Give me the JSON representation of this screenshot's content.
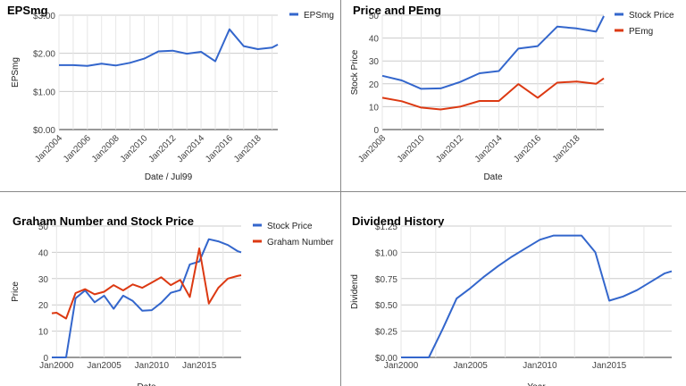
{
  "chart_data": [
    {
      "type": "line",
      "title": "EPSmg",
      "xlabel": "Date / Jul99",
      "ylabel": "EPSmg",
      "x_tick_labels": [
        "Jan2004",
        "Jan2006",
        "Jan2008",
        "Jan2010",
        "Jan2012",
        "Jan2014",
        "Jan2016",
        "Jan2018"
      ],
      "y_tick_labels": [
        "$0.00",
        "$1.00",
        "$2.00",
        "$3.00"
      ],
      "xlim": [
        2004.0,
        2019.4
      ],
      "ylim": [
        0,
        3
      ],
      "legend_position": "top-right",
      "grid": true,
      "series": [
        {
          "name": "EPSmg",
          "color": "#3366cc",
          "x": [
            2004,
            2005,
            2006,
            2007,
            2008,
            2009,
            2010,
            2011,
            2012,
            2013,
            2014,
            2015,
            2016,
            2017,
            2018,
            2019,
            2019.4
          ],
          "y": [
            1.69,
            1.69,
            1.67,
            1.73,
            1.68,
            1.75,
            1.86,
            2.05,
            2.07,
            1.99,
            2.04,
            1.79,
            2.63,
            2.19,
            2.11,
            2.15,
            2.23
          ]
        }
      ]
    },
    {
      "type": "line",
      "title": "Price and PEmg",
      "xlabel": "Date",
      "ylabel": "Stock Price",
      "x_tick_labels": [
        "Jan2008",
        "Jan2010",
        "Jan2012",
        "Jan2014",
        "Jan2016",
        "Jan2018"
      ],
      "y_tick_labels": [
        "0",
        "10",
        "20",
        "30",
        "40",
        "50"
      ],
      "xlim": [
        2008.0,
        2019.4
      ],
      "ylim": [
        0,
        50
      ],
      "legend_position": "top-right",
      "grid": true,
      "series": [
        {
          "name": "Stock Price",
          "color": "#3366cc",
          "x": [
            2008,
            2009,
            2010,
            2011,
            2012,
            2013,
            2014,
            2015,
            2016,
            2017,
            2018,
            2019,
            2019.4
          ],
          "y": [
            23.5,
            21.5,
            17.8,
            18.0,
            20.8,
            24.6,
            25.6,
            35.4,
            36.5,
            45.0,
            44.2,
            42.8,
            49.6
          ]
        },
        {
          "name": "PEmg",
          "color": "#dc3912",
          "x": [
            2008,
            2009,
            2010,
            2011,
            2012,
            2013,
            2014,
            2015,
            2016,
            2017,
            2018,
            2019,
            2019.4
          ],
          "y": [
            13.9,
            12.4,
            9.6,
            8.8,
            10.0,
            12.5,
            12.5,
            19.9,
            13.9,
            20.5,
            21.0,
            20.0,
            22.4
          ]
        }
      ]
    },
    {
      "type": "line",
      "title": "Graham Number and Stock Price",
      "xlabel": "Date",
      "ylabel": "Price",
      "x_tick_labels": [
        "Jan2000",
        "Jan2005",
        "Jan2010",
        "Jan2015"
      ],
      "y_tick_labels": [
        "0",
        "10",
        "20",
        "30",
        "40",
        "50"
      ],
      "xlim": [
        1999.5,
        2019.4
      ],
      "ylim": [
        0,
        50
      ],
      "legend_position": "top-right",
      "grid": true,
      "series": [
        {
          "name": "Stock Price",
          "color": "#3366cc",
          "x": [
            1999.5,
            2000,
            2001,
            2002,
            2003,
            2004,
            2005,
            2006,
            2007,
            2008,
            2009,
            2010,
            2011,
            2012,
            2013,
            2014,
            2015,
            2016,
            2017,
            2018,
            2019,
            2019.4
          ],
          "y": [
            0,
            0,
            0,
            22.5,
            25.5,
            21.0,
            23.5,
            18.5,
            23.5,
            21.5,
            17.8,
            18.0,
            20.8,
            24.6,
            25.6,
            35.4,
            36.5,
            45.0,
            44.2,
            42.8,
            40.5,
            40.0
          ]
        },
        {
          "name": "Graham Number",
          "color": "#dc3912",
          "x": [
            1999.5,
            2000,
            2001,
            2002,
            2003,
            2004,
            2005,
            2006,
            2007,
            2008,
            2009,
            2010,
            2011,
            2012,
            2013,
            2014,
            2015,
            2016,
            2017,
            2018,
            2019,
            2019.4
          ],
          "y": [
            16.8,
            17.0,
            14.8,
            24.5,
            26.0,
            24.0,
            25.0,
            27.5,
            25.5,
            27.8,
            26.5,
            28.5,
            30.5,
            27.5,
            29.5,
            23.0,
            41.5,
            20.5,
            26.5,
            30.0,
            31.0,
            31.3
          ]
        }
      ]
    },
    {
      "type": "line",
      "title": "Dividend History",
      "xlabel": "Year",
      "ylabel": "Dividend",
      "x_tick_labels": [
        "Jan2000",
        "Jan2005",
        "Jan2010",
        "Jan2015"
      ],
      "y_tick_labels": [
        "$0.00",
        "$0.25",
        "$0.50",
        "$0.75",
        "$1.00",
        "$1.25"
      ],
      "xlim": [
        2000.0,
        2019.5
      ],
      "ylim": [
        0,
        1.25
      ],
      "legend_position": "none",
      "grid": true,
      "series": [
        {
          "name": "",
          "color": "#3366cc",
          "x": [
            2000,
            2001,
            2002,
            2003,
            2004,
            2005,
            2006,
            2007,
            2008,
            2009,
            2010,
            2011,
            2012,
            2013,
            2014,
            2015,
            2016,
            2017,
            2018,
            2019,
            2019.5
          ],
          "y": [
            0,
            0,
            0,
            0.27,
            0.56,
            0.66,
            0.77,
            0.87,
            0.96,
            1.04,
            1.12,
            1.16,
            1.16,
            1.16,
            1.0,
            0.54,
            0.58,
            0.64,
            0.72,
            0.8,
            0.82
          ]
        }
      ]
    }
  ]
}
